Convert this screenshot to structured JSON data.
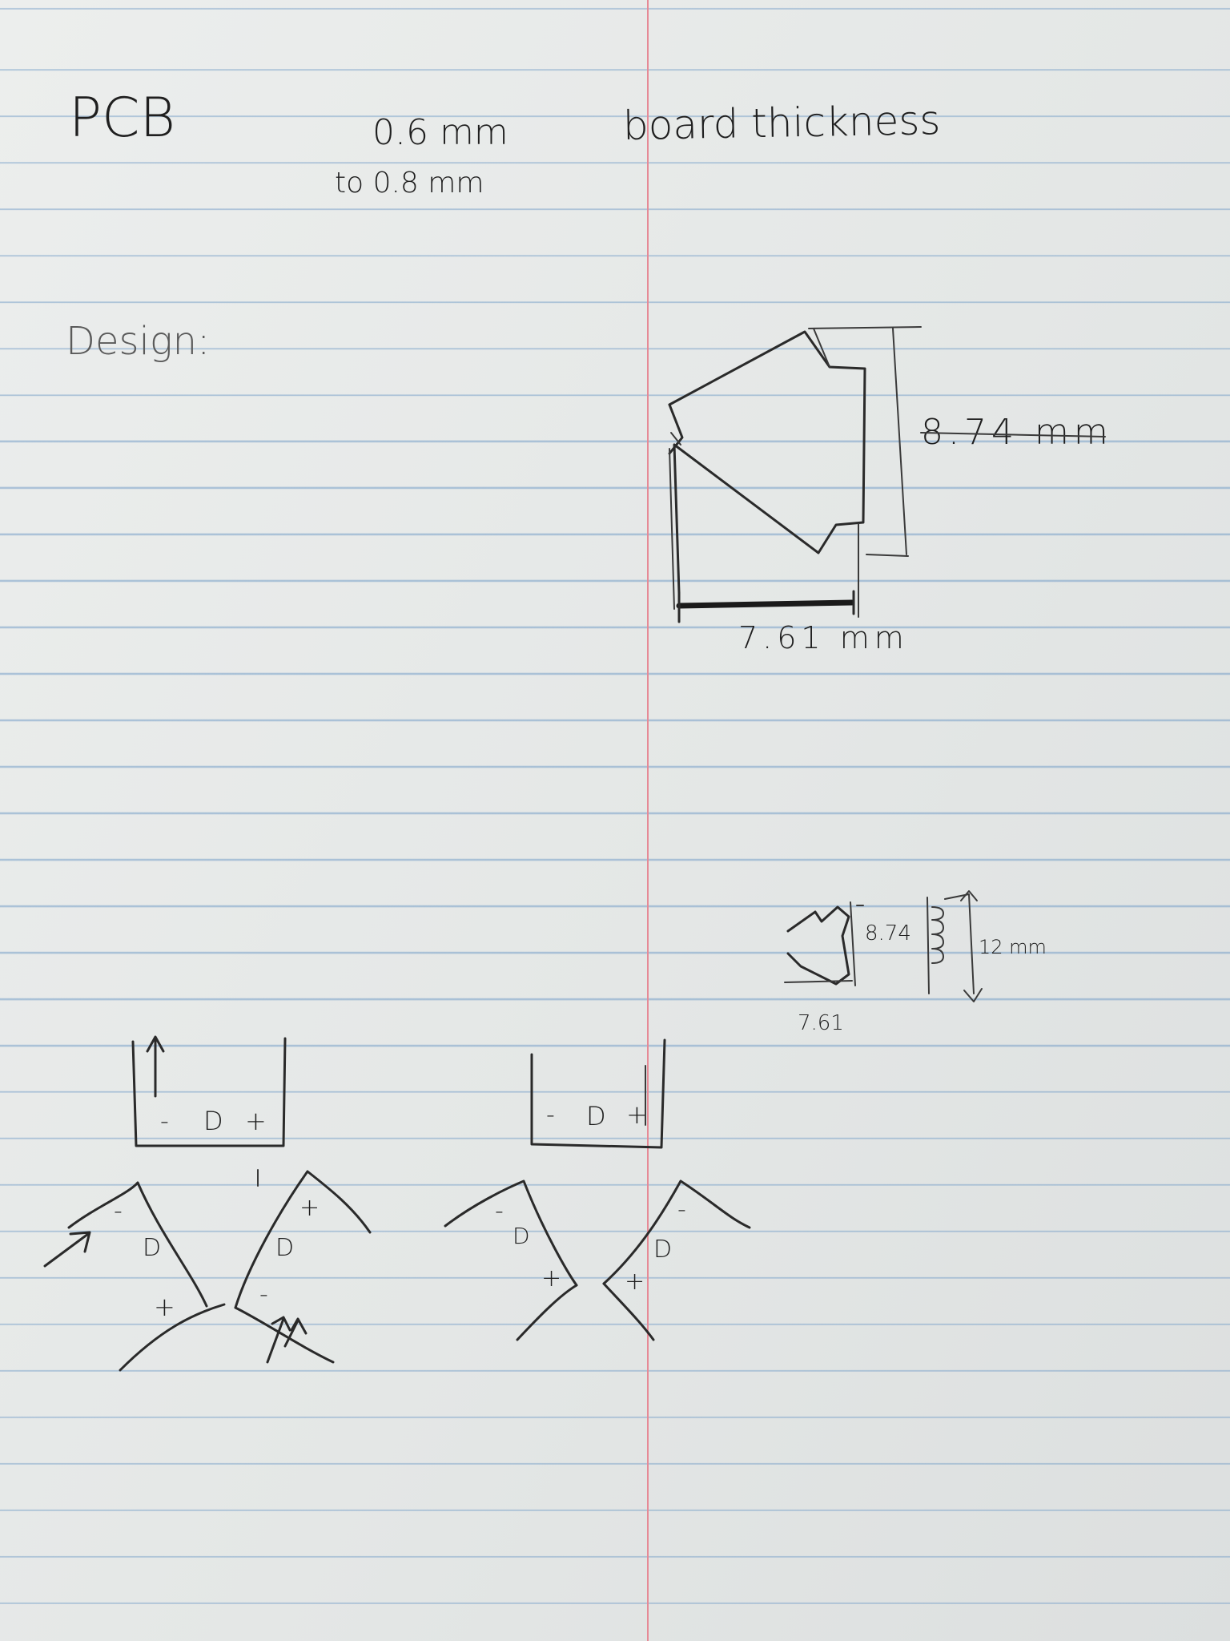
{
  "notes": {
    "title": "PCB",
    "thickness_line1": "0.6 mm",
    "thickness_line1_suffix": "board thickness",
    "thickness_line2": "to 0.8 mm",
    "design_heading": "Design:"
  },
  "large_sketch": {
    "height_label": "8.74 mm",
    "width_label": "7.61 mm"
  },
  "small_sketch": {
    "height_label": "8.74",
    "width_label": "7.61",
    "total_label": "12 mm"
  },
  "diagrams": {
    "left_box": {
      "minus": "-",
      "diode": "D",
      "plus": "+"
    },
    "right_box": {
      "minus": "-",
      "diode": "D",
      "plus": "+"
    },
    "left_pair": {
      "left": {
        "minus": "-",
        "diode": "D",
        "plus": "+"
      },
      "right": {
        "minus": "-",
        "diode": "D",
        "plus": "+"
      }
    },
    "right_pair": {
      "left": {
        "minus": "-",
        "diode": "D",
        "plus": "+"
      },
      "right": {
        "minus": "-",
        "diode": "D",
        "plus": "+"
      }
    }
  },
  "colors": {
    "paper": "#e9ecea",
    "rule_line": "#78a0c8",
    "margin_line": "#e68a96",
    "ink": "#1f1f1f"
  }
}
